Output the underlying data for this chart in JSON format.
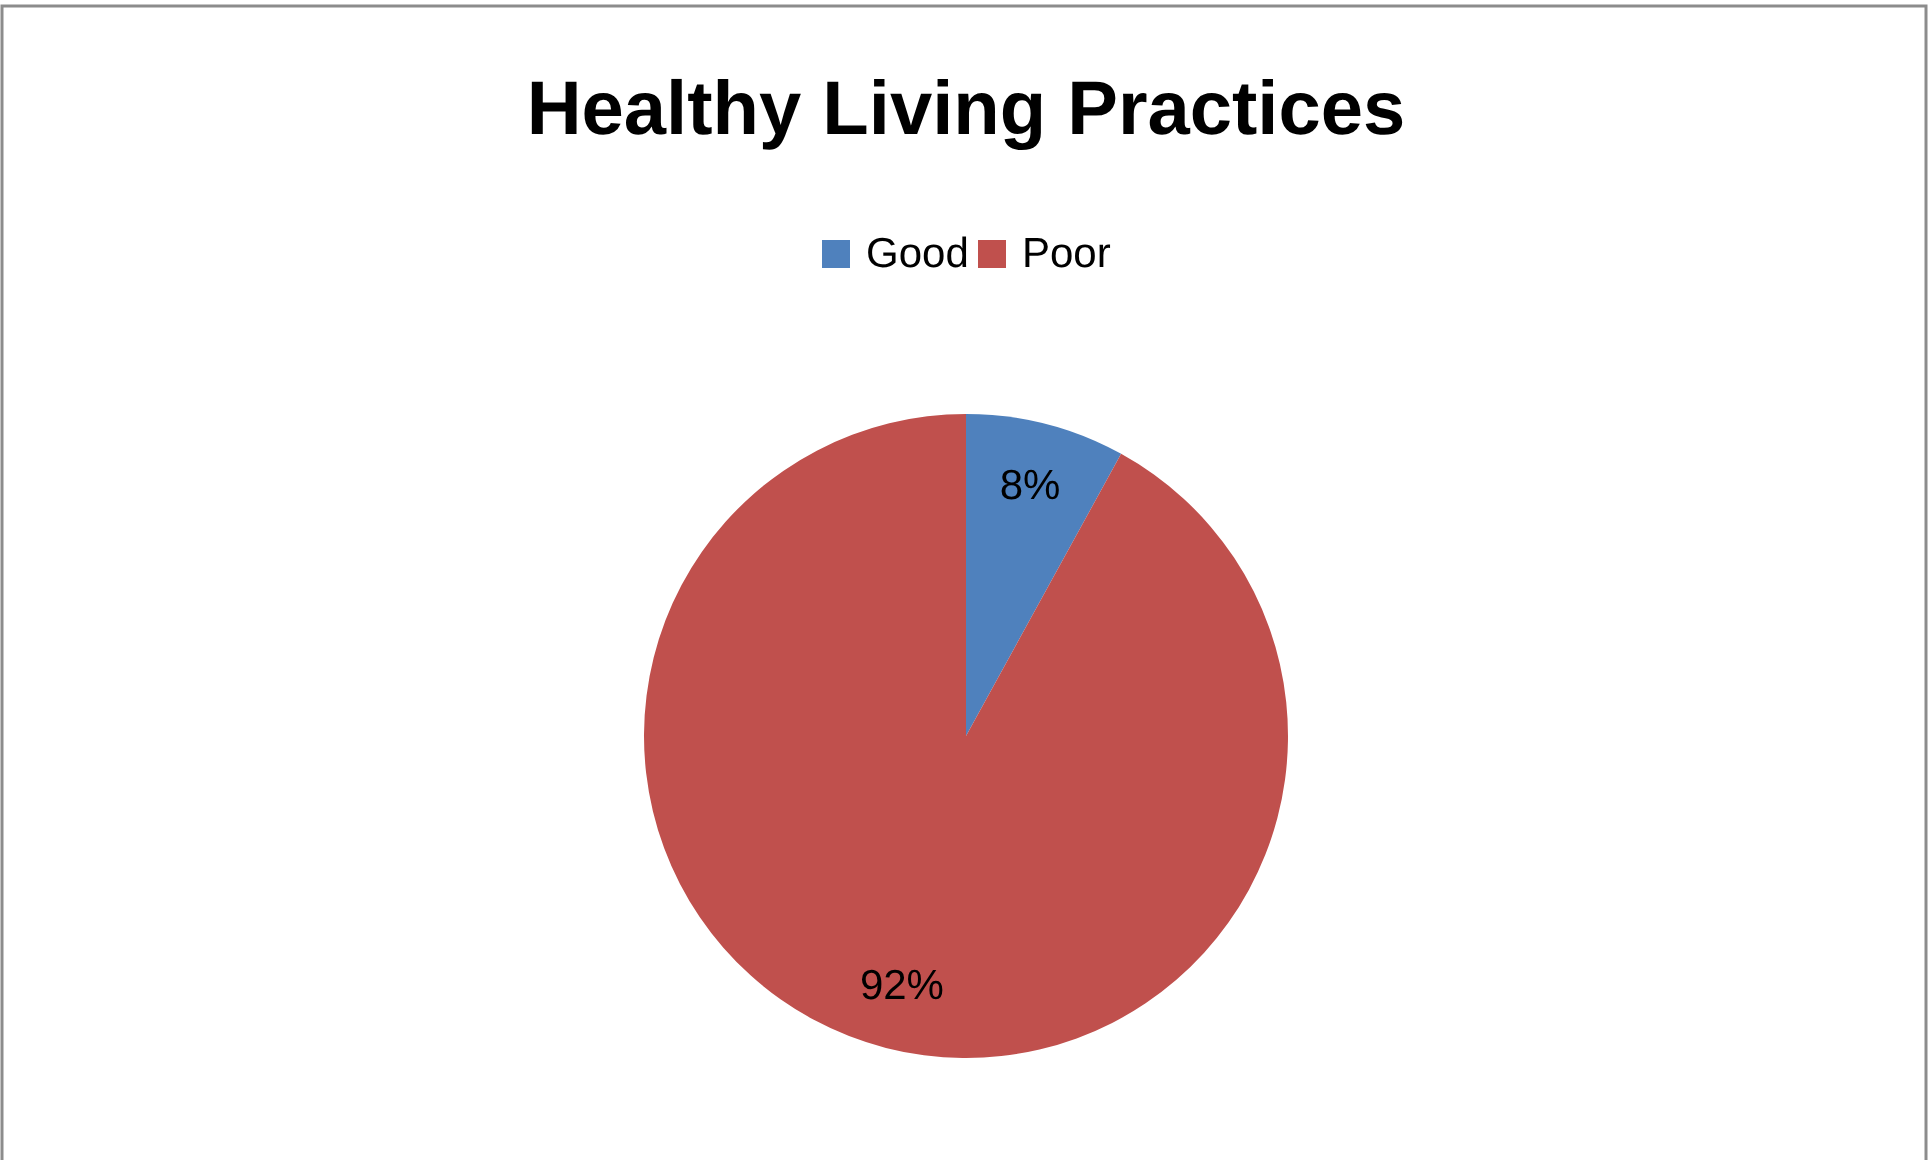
{
  "chart_data": {
    "type": "pie",
    "title": "Healthy Living Practices",
    "categories": [
      "Good",
      "Poor"
    ],
    "values": [
      8,
      92
    ],
    "colors": [
      "#4f81bd",
      "#c0504d"
    ],
    "value_labels": [
      "8%",
      "92%"
    ],
    "legend": "top"
  }
}
